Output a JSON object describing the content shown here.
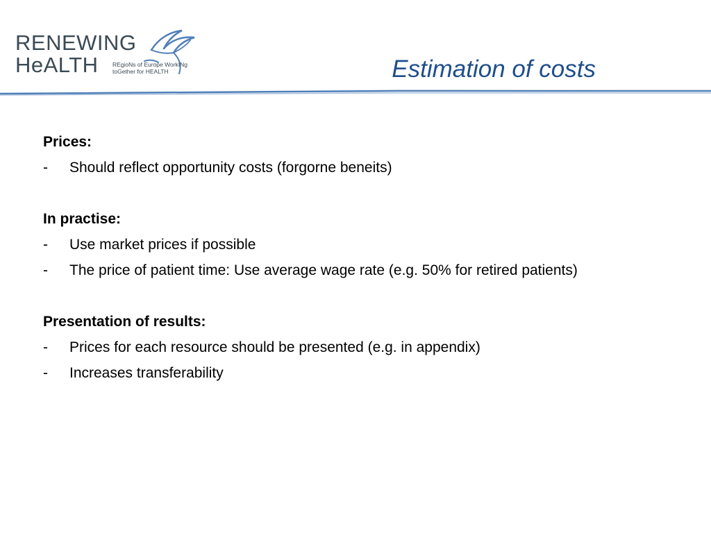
{
  "logo": {
    "line1": "RENEWING",
    "line2": "HeALTH",
    "tagline_1": "REgioNs of Europe WorkINg",
    "tagline_2": "toGether for HEALTH",
    "colors": {
      "text": "#3b4a55",
      "bird": "#4f7fb8"
    },
    "icon": "bird-icon"
  },
  "title": "Estimation of costs",
  "colors": {
    "title": "#1f4e8c",
    "divider": "#4f7fb8"
  },
  "sections": [
    {
      "heading": "Prices:",
      "bullets": [
        "Should reflect opportunity costs (forgorne beneits)"
      ]
    },
    {
      "heading": "In practise:",
      "bullets": [
        "Use market prices if possible",
        "The price of patient time: Use average wage rate (e.g. 50% for retired patients)"
      ]
    },
    {
      "heading": "Presentation of results:",
      "bullets": [
        "Prices for each resource should be presented (e.g. in appendix)",
        "Increases transferability"
      ]
    }
  ],
  "bullet_marker": "-"
}
